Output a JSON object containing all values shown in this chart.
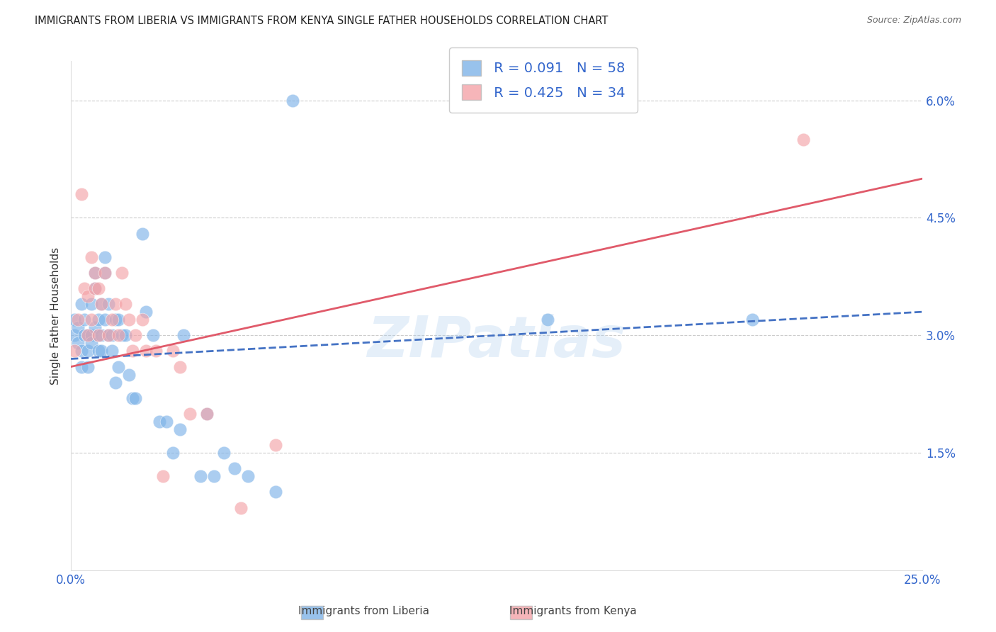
{
  "title": "IMMIGRANTS FROM LIBERIA VS IMMIGRANTS FROM KENYA SINGLE FATHER HOUSEHOLDS CORRELATION CHART",
  "source": "Source: ZipAtlas.com",
  "ylabel": "Single Father Households",
  "xlim": [
    0.0,
    0.25
  ],
  "ylim": [
    0.0,
    0.065
  ],
  "xticks": [
    0.0,
    0.05,
    0.1,
    0.15,
    0.2,
    0.25
  ],
  "xticklabels": [
    "0.0%",
    "",
    "",
    "",
    "",
    "25.0%"
  ],
  "yticks_right": [
    0.0,
    0.015,
    0.03,
    0.045,
    0.06
  ],
  "yticklabels_right": [
    "",
    "1.5%",
    "3.0%",
    "4.5%",
    "6.0%"
  ],
  "legend_R1": "R = 0.091",
  "legend_N1": "N = 58",
  "legend_R2": "R = 0.425",
  "legend_N2": "N = 34",
  "color_liberia": "#7EB3E8",
  "color_kenya": "#F4A3A8",
  "line_color_liberia": "#4472C4",
  "line_color_kenya": "#E05A6A",
  "watermark": "ZIPatlas",
  "bg_color": "#FFFFFF",
  "grid_color": "#CCCCCC",
  "liberia_x": [
    0.001,
    0.001,
    0.002,
    0.002,
    0.003,
    0.003,
    0.003,
    0.004,
    0.004,
    0.005,
    0.005,
    0.005,
    0.006,
    0.006,
    0.006,
    0.007,
    0.007,
    0.007,
    0.008,
    0.008,
    0.008,
    0.009,
    0.009,
    0.009,
    0.01,
    0.01,
    0.01,
    0.011,
    0.011,
    0.012,
    0.012,
    0.013,
    0.013,
    0.014,
    0.014,
    0.015,
    0.016,
    0.017,
    0.018,
    0.019,
    0.021,
    0.022,
    0.024,
    0.026,
    0.028,
    0.03,
    0.032,
    0.033,
    0.038,
    0.04,
    0.042,
    0.045,
    0.048,
    0.052,
    0.06,
    0.065,
    0.14,
    0.2
  ],
  "liberia_y": [
    0.03,
    0.032,
    0.029,
    0.031,
    0.034,
    0.028,
    0.026,
    0.03,
    0.032,
    0.03,
    0.028,
    0.026,
    0.03,
    0.034,
    0.029,
    0.036,
    0.038,
    0.031,
    0.03,
    0.028,
    0.032,
    0.034,
    0.03,
    0.028,
    0.032,
    0.038,
    0.04,
    0.034,
    0.03,
    0.03,
    0.028,
    0.032,
    0.024,
    0.032,
    0.026,
    0.03,
    0.03,
    0.025,
    0.022,
    0.022,
    0.043,
    0.033,
    0.03,
    0.019,
    0.019,
    0.015,
    0.018,
    0.03,
    0.012,
    0.02,
    0.012,
    0.015,
    0.013,
    0.012,
    0.01,
    0.06,
    0.032,
    0.032
  ],
  "kenya_x": [
    0.001,
    0.002,
    0.003,
    0.004,
    0.005,
    0.005,
    0.006,
    0.006,
    0.007,
    0.007,
    0.008,
    0.008,
    0.009,
    0.01,
    0.011,
    0.012,
    0.013,
    0.014,
    0.015,
    0.016,
    0.017,
    0.018,
    0.019,
    0.021,
    0.022,
    0.025,
    0.027,
    0.03,
    0.032,
    0.035,
    0.04,
    0.05,
    0.06,
    0.215
  ],
  "kenya_y": [
    0.028,
    0.032,
    0.048,
    0.036,
    0.035,
    0.03,
    0.04,
    0.032,
    0.038,
    0.036,
    0.036,
    0.03,
    0.034,
    0.038,
    0.03,
    0.032,
    0.034,
    0.03,
    0.038,
    0.034,
    0.032,
    0.028,
    0.03,
    0.032,
    0.028,
    0.028,
    0.012,
    0.028,
    0.026,
    0.02,
    0.02,
    0.008,
    0.016,
    0.055
  ]
}
